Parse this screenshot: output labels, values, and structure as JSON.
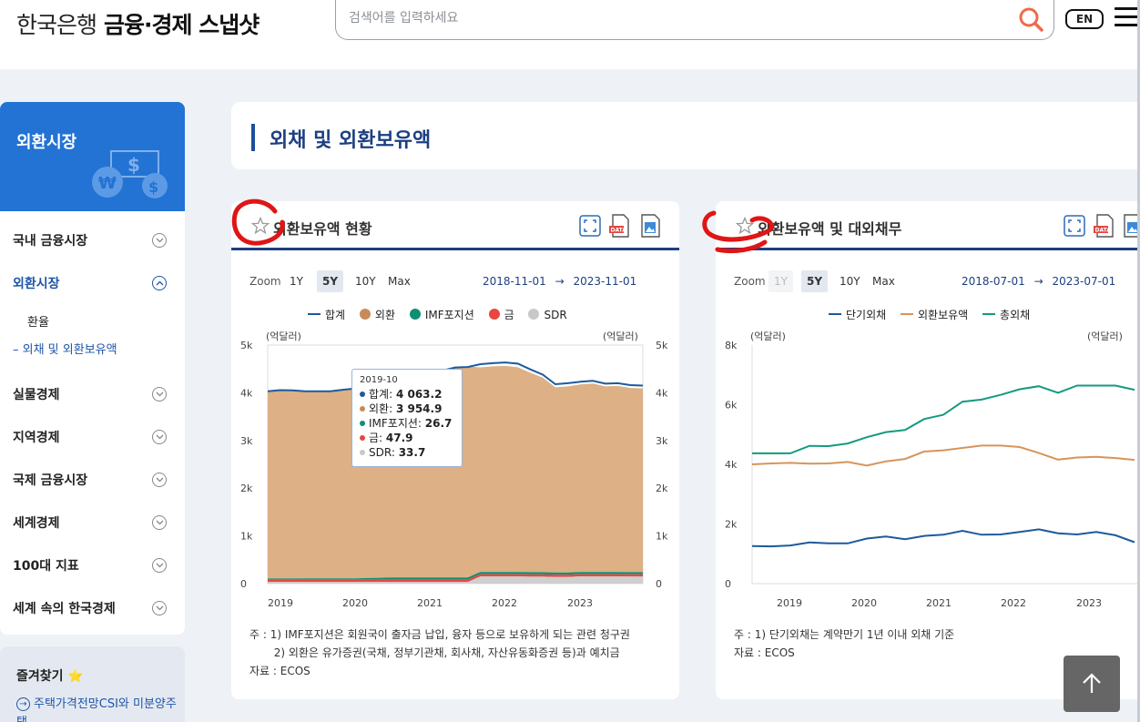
{
  "header": {
    "logo_primary": "한국은행",
    "logo_secondary": "금융·경제 스냅샷",
    "search_placeholder": "검색어를 입력하세요",
    "lang_button": "EN"
  },
  "sidebar": {
    "hero_title": "외환시장",
    "items": [
      {
        "label": "국내 금융시장",
        "active": false
      },
      {
        "label": "외환시장",
        "active": true
      },
      {
        "label": "실물경제",
        "active": false
      },
      {
        "label": "지역경제",
        "active": false
      },
      {
        "label": "국제 금융시장",
        "active": false
      },
      {
        "label": "세계경제",
        "active": false
      },
      {
        "label": "100대 지표",
        "active": false
      },
      {
        "label": "세계 속의 한국경제",
        "active": false
      }
    ],
    "subitems": [
      {
        "label": "환율",
        "active": false
      },
      {
        "label": "– 외채 및 외환보유액",
        "active": true
      }
    ],
    "favorites_title": "즐겨찾기 ⭐",
    "favorites_link": "주택가격전망CSI와 미분양주택"
  },
  "page_title": "외채 및 외환보유액",
  "charts": [
    {
      "title": "외환보유액 현황",
      "zoom_label": "Zoom",
      "zoom_options": [
        "1Y",
        "5Y",
        "10Y",
        "Max"
      ],
      "zoom_selected": "5Y",
      "range_from": "2018-11-01",
      "range_arrow": "→",
      "range_to": "2023-11-01",
      "unit_left": "(억달러)",
      "unit_right": "(억달러)",
      "legend": [
        {
          "name": "합계",
          "color": "#1d5a9c",
          "kind": "line"
        },
        {
          "name": "외환",
          "color": "#c98a5a",
          "kind": "dot"
        },
        {
          "name": "IMF포지션",
          "color": "#0e8f72",
          "kind": "dot"
        },
        {
          "name": "금",
          "color": "#e8473f",
          "kind": "dot"
        },
        {
          "name": "SDR",
          "color": "#c8c8c8",
          "kind": "dot"
        }
      ],
      "tooltip": {
        "date": "2019-10",
        "rows": [
          {
            "label": "합계:",
            "value": "4 063.2",
            "color": "#1d5a9c"
          },
          {
            "label": "외환:",
            "value": "3 954.9",
            "color": "#c98a5a"
          },
          {
            "label": "IMF포지션:",
            "value": "26.7",
            "color": "#0e8f72"
          },
          {
            "label": "금:",
            "value": "47.9",
            "color": "#e8473f"
          },
          {
            "label": "SDR:",
            "value": "33.7",
            "color": "#c8c8c8"
          }
        ]
      },
      "notes": [
        "주 : 1) IMF포지션은 회원국이 출자금 납입, 융자 등으로 보유하게 되는 관련 청구권",
        "       2) 외환은 유가증권(국채, 정부기관채, 회사채, 자산유동화증권 등)과 예치금",
        "자료 :  ECOS"
      ]
    },
    {
      "title": "외환보유액 및 대외채무",
      "zoom_label": "Zoom",
      "zoom_options": [
        "1Y",
        "5Y",
        "10Y",
        "Max"
      ],
      "zoom_selected": "5Y",
      "zoom_disabled": "1Y",
      "range_from": "2018-07-01",
      "range_arrow": "→",
      "range_to": "2023-07-01",
      "unit_left": "(억달러)",
      "unit_right": "(억달러)",
      "legend": [
        {
          "name": "단기외채",
          "color": "#1d5a9c",
          "kind": "line"
        },
        {
          "name": "외환보유액",
          "color": "#d6955c",
          "kind": "line"
        },
        {
          "name": "총외채",
          "color": "#149a80",
          "kind": "line"
        }
      ],
      "notes": [
        "주 : 1) 단기외채는 계약만기 1년 이내 외채 기준",
        "자료 :  ECOS"
      ]
    }
  ],
  "chart_data": [
    {
      "type": "area",
      "title": "",
      "x_ticks": [
        "2019",
        "2020",
        "2021",
        "2022",
        "2023"
      ],
      "y_ticks": [
        "0",
        "1k",
        "2k",
        "3k",
        "4k",
        "5k"
      ],
      "ylim": [
        0,
        5000
      ],
      "x": [
        "2018-11",
        "2019-01",
        "2019-03",
        "2019-05",
        "2019-07",
        "2019-09",
        "2019-10",
        "2019-12",
        "2020-02",
        "2020-04",
        "2020-06",
        "2020-08",
        "2020-10",
        "2020-12",
        "2021-02",
        "2021-04",
        "2021-06",
        "2021-08",
        "2021-10",
        "2021-12",
        "2022-02",
        "2022-04",
        "2022-06",
        "2022-08",
        "2022-10",
        "2022-12",
        "2023-02",
        "2023-04",
        "2023-06",
        "2023-08",
        "2023-10"
      ],
      "series": [
        {
          "name": "합계",
          "values": [
            4030,
            4055,
            4050,
            4030,
            4030,
            4030,
            4063,
            4090,
            4095,
            4040,
            4110,
            4170,
            4265,
            4430,
            4470,
            4530,
            4540,
            4600,
            4620,
            4635,
            4610,
            4490,
            4380,
            4180,
            4200,
            4230,
            4250,
            4190,
            4200,
            4160,
            4150
          ]
        },
        {
          "name": "외환",
          "values": [
            3925,
            3945,
            3940,
            3920,
            3925,
            3922,
            3955,
            3980,
            3985,
            3930,
            4000,
            4060,
            4150,
            4310,
            4350,
            4410,
            4420,
            4290,
            4310,
            4320,
            4290,
            4180,
            4080,
            3880,
            3900,
            3930,
            3950,
            3890,
            3900,
            3860,
            3850
          ]
        },
        {
          "name": "IMF포지션",
          "values": [
            25,
            26,
            26,
            27,
            27,
            27,
            27,
            28,
            35,
            40,
            45,
            47,
            47,
            48,
            48,
            48,
            48,
            45,
            45,
            45,
            47,
            47,
            46,
            46,
            45,
            45,
            45,
            45,
            45,
            45,
            45
          ]
        },
        {
          "name": "금",
          "values": [
            48,
            48,
            48,
            48,
            48,
            48,
            48,
            48,
            48,
            48,
            48,
            48,
            48,
            48,
            48,
            48,
            48,
            48,
            48,
            48,
            48,
            48,
            48,
            48,
            48,
            48,
            48,
            48,
            48,
            48,
            48
          ]
        },
        {
          "name": "SDR",
          "values": [
            33,
            33,
            33,
            33,
            33,
            34,
            34,
            34,
            34,
            34,
            34,
            34,
            34,
            34,
            34,
            34,
            34,
            150,
            150,
            150,
            150,
            145,
            145,
            140,
            140,
            150,
            150,
            150,
            150,
            148,
            148
          ]
        }
      ]
    },
    {
      "type": "line",
      "title": "",
      "x_ticks": [
        "2019",
        "2020",
        "2021",
        "2022",
        "2023"
      ],
      "y_ticks": [
        "0",
        "2k",
        "4k",
        "6k",
        "8k"
      ],
      "ylim": [
        0,
        8000
      ],
      "x": [
        "2018-Q3",
        "2018-Q4",
        "2019-Q1",
        "2019-Q2",
        "2019-Q3",
        "2019-Q4",
        "2020-Q1",
        "2020-Q2",
        "2020-Q3",
        "2020-Q4",
        "2021-Q1",
        "2021-Q2",
        "2021-Q3",
        "2021-Q4",
        "2022-Q1",
        "2022-Q2",
        "2022-Q3",
        "2022-Q4",
        "2023-Q1",
        "2023-Q2",
        "2023-Q3"
      ],
      "series": [
        {
          "name": "단기외채",
          "values": [
            1260,
            1250,
            1280,
            1380,
            1350,
            1350,
            1510,
            1580,
            1490,
            1600,
            1640,
            1770,
            1640,
            1650,
            1730,
            1820,
            1690,
            1650,
            1730,
            1620,
            1390
          ]
        },
        {
          "name": "외환보유액",
          "values": [
            4000,
            4030,
            4050,
            4020,
            4030,
            4080,
            3960,
            4100,
            4180,
            4430,
            4470,
            4550,
            4630,
            4630,
            4580,
            4380,
            4160,
            4230,
            4250,
            4210,
            4150
          ]
        },
        {
          "name": "총외채",
          "values": [
            4370,
            4370,
            4370,
            4620,
            4610,
            4700,
            4910,
            5080,
            5150,
            5520,
            5660,
            6100,
            6170,
            6330,
            6520,
            6620,
            6400,
            6640,
            6640,
            6640,
            6500
          ]
        }
      ]
    }
  ]
}
